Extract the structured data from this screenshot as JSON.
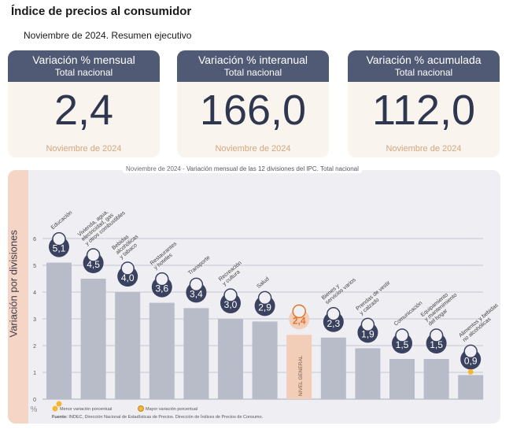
{
  "header": {
    "title": "Índice de precios al consumidor",
    "subtitle": "Noviembre de 2024. Resumen ejecutivo"
  },
  "cards": [
    {
      "title": "Variación % mensual",
      "subtitle": "Total nacional",
      "value": "2,4",
      "footer": "Noviembre de 2024"
    },
    {
      "title": "Variación % interanual",
      "subtitle": "Total nacional",
      "value": "166,0",
      "footer": "Noviembre de 2024"
    },
    {
      "title": "Variación % acumulada",
      "subtitle": "Total nacional",
      "value": "112,0",
      "footer": "Noviembre de 2024"
    }
  ],
  "chart_title_prefix": "Noviembre de 2024 -",
  "chart_title_main": " Variación mensual de las 12 divisiones del IPC. Total nacional",
  "chart_data": {
    "type": "bar",
    "title": "Variación mensual de las 12 divisiones del IPC. Total nacional",
    "ylabel": "Variación por divisiones",
    "yunit": "%",
    "ylim": [
      0,
      6
    ],
    "yticks": [
      0,
      1,
      2,
      3,
      4,
      5,
      6
    ],
    "grid": true,
    "categories": [
      "Educación",
      "Vivienda, agua, electricidad, gas y otros combustibles",
      "Bebidas alcohólicas y tabaco",
      "Restaurantes y hoteles",
      "Transporte",
      "Recreación y cultura",
      "Salud",
      "NIVEL GENERAL",
      "Bienes y servicios varios",
      "Prendas de vestir y calzado",
      "Comunicación",
      "Equipamiento y mantenimiento del hogar",
      "Alimentos y bebidas no alcohólicas"
    ],
    "values": [
      5.1,
      4.5,
      4.0,
      3.6,
      3.4,
      3.0,
      2.9,
      2.4,
      2.3,
      1.9,
      1.5,
      1.5,
      0.9
    ],
    "value_labels": [
      "5,1",
      "4,5",
      "4,0",
      "3,6",
      "3,4",
      "3,0",
      "2,9",
      "2,4",
      "2,3",
      "1,9",
      "1,5",
      "1,5",
      "0,9"
    ],
    "category_label_lines": [
      [
        "Educación"
      ],
      [
        "Vivienda, agua,",
        "electricidad, gas",
        "y otros combustibles"
      ],
      [
        "Bebidas",
        "alcohólicas",
        "y tabaco"
      ],
      [
        "Restaurantes",
        "y hoteles"
      ],
      [
        "Transporte"
      ],
      [
        "Recreación",
        "y cultura"
      ],
      [
        "Salud"
      ],
      [],
      [
        "Bienes y",
        "servicios varios"
      ],
      [
        "Prendas de vestir",
        "y calzado"
      ],
      [
        "Comunicación"
      ],
      [
        "Equipamiento",
        "y mantenimiento",
        "del hogar"
      ],
      [
        "Alimentos y bebidas",
        "no alcohólicas"
      ]
    ],
    "general_label": "NIVEL GENERAL",
    "highlight_index": 7,
    "max_marker_index": 0,
    "min_marker_index": 12,
    "legend": [
      {
        "label": "Menor variación porcentual"
      },
      {
        "label": "Mayor variación porcentual"
      }
    ],
    "colors": {
      "bar": "#b7bcc8",
      "general_bar": "#f2cdb8",
      "badge": "#3b4260",
      "badge_general": "#f2cdb8",
      "badge_general_text": "#e0762e",
      "marker": "#f5b733",
      "grid": "#b6bac6"
    }
  },
  "source_label": "Fuente:",
  "source_text": " INDEC, Dirección Nacional de Estadísticas de Precios. Dirección de Índices de Precios de Consumo."
}
